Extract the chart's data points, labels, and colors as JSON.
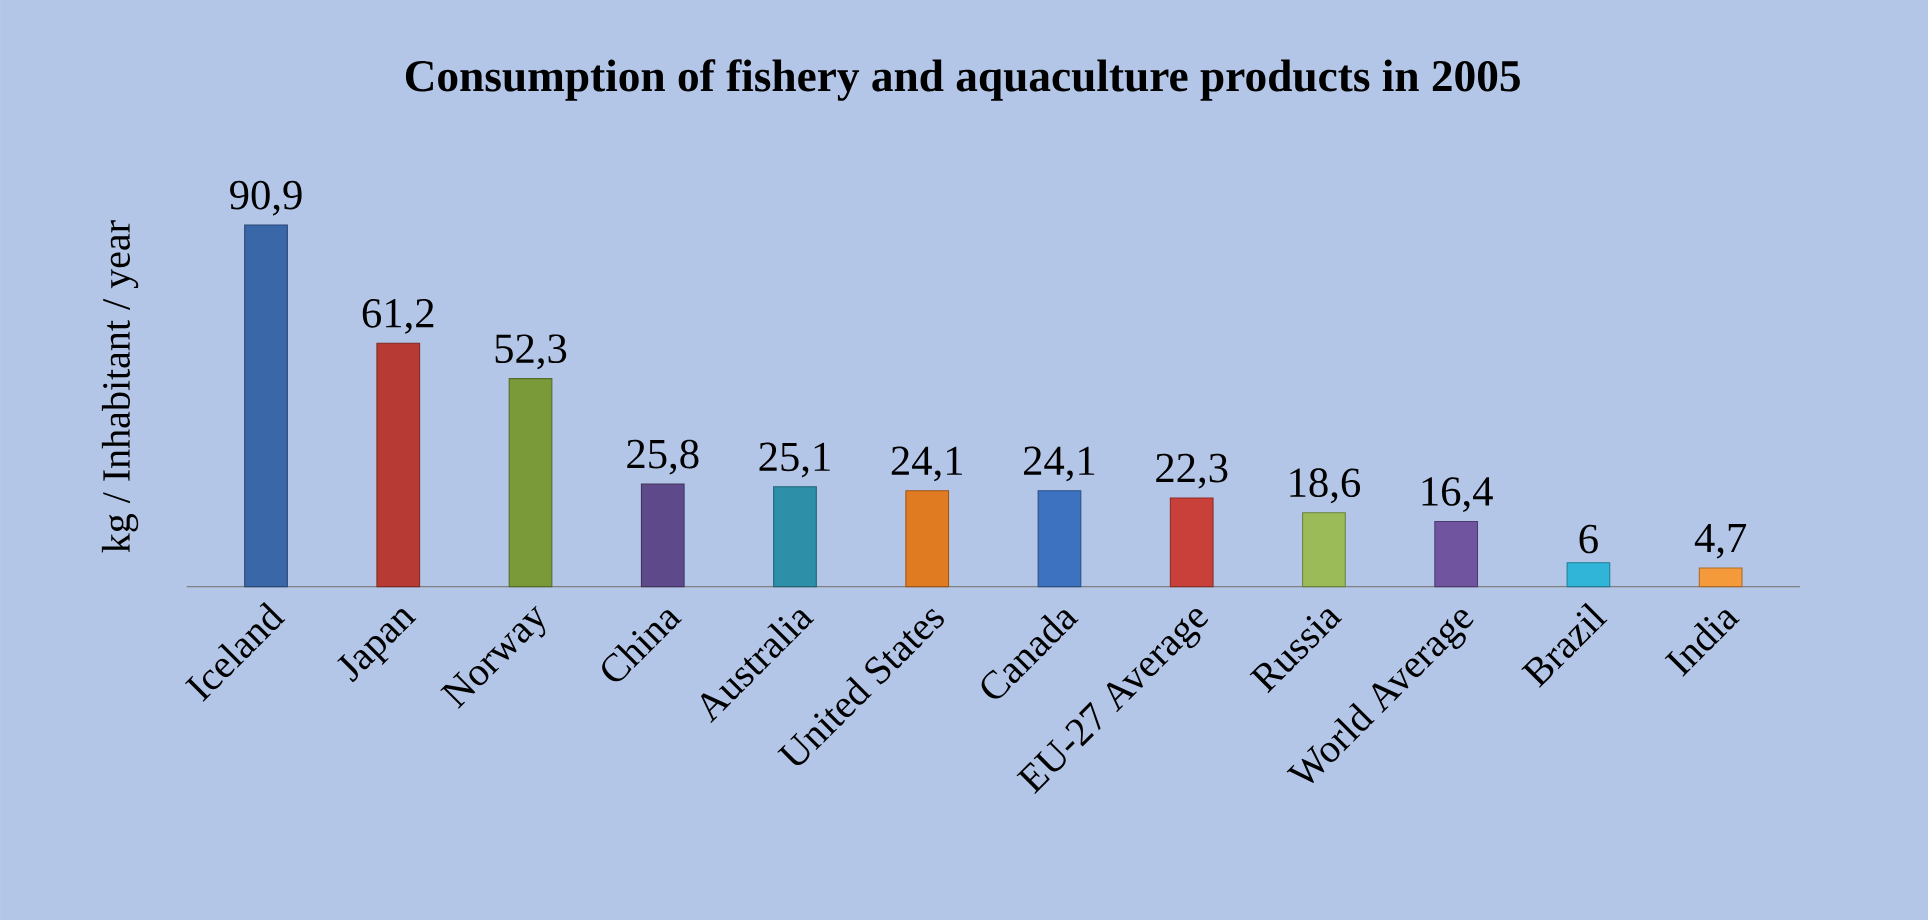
{
  "chart_data": {
    "type": "bar",
    "title": "Consumption of fishery and aquaculture products in 2005",
    "ylabel": "kg / Inhabitant / year",
    "categories": [
      "Iceland",
      "Japan",
      "Norway",
      "China",
      "Australia",
      "United States",
      "Canada",
      "EU-27 Average",
      "Russia",
      "World Average",
      "Brazil",
      "India"
    ],
    "values": [
      90.9,
      61.2,
      52.3,
      25.8,
      25.1,
      24.1,
      24.1,
      22.3,
      18.6,
      16.4,
      6,
      4.7
    ],
    "value_labels": [
      "90,9",
      "61,2",
      "52,3",
      "25,8",
      "25,1",
      "24,1",
      "24,1",
      "22,3",
      "18,6",
      "16,4",
      "6",
      "4,7"
    ],
    "colors": [
      "#3a67a8",
      "#b83a35",
      "#7a9a3a",
      "#5e4a8a",
      "#2e8fa8",
      "#e07b22",
      "#3c72c0",
      "#c9403a",
      "#9bbb59",
      "#7054a0",
      "#30b4d8",
      "#f59a3a"
    ]
  }
}
